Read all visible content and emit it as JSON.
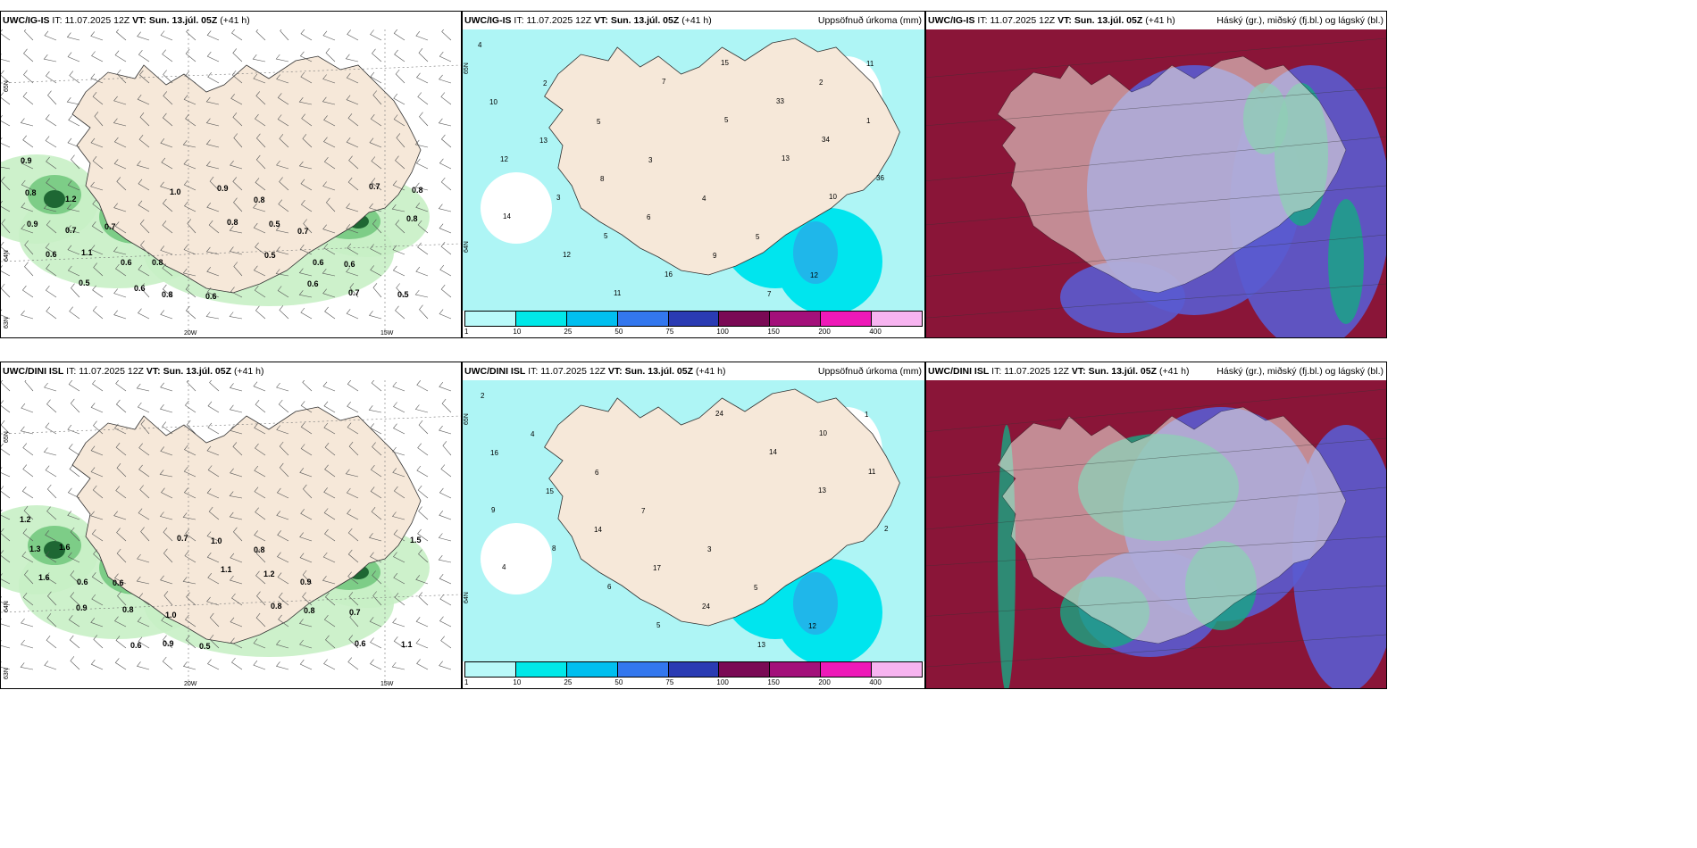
{
  "panels": [
    {
      "id": "top-left",
      "model": "UWC/IG-IS",
      "it_label": "IT:",
      "it_value": "11.07.2025 12Z",
      "vt_label": "VT:",
      "vt_value": "Sun. 13.júl. 05Z",
      "lead": "(+41 h)",
      "right_title": "",
      "lat_labels": [
        "65N",
        "64N",
        "63N"
      ],
      "lon_labels": [
        "20W",
        "15W"
      ],
      "values": [
        "0.9",
        "1.2",
        "0.7",
        "0.8",
        "0.6",
        "0.8",
        "0.7",
        "0.6",
        "0.5",
        "0.8",
        "0.7",
        "0.6",
        "0.8",
        "0.9",
        "0.5",
        "0.6",
        "0.7",
        "0.8",
        "0.9",
        "1.1",
        "0.6",
        "1.0",
        "0.8",
        "0.5",
        "0.6",
        "0.7",
        "0.8",
        "0.6",
        "0.5"
      ]
    },
    {
      "id": "top-middle",
      "model": "UWC/IG-IS",
      "it_label": "IT:",
      "it_value": "11.07.2025 12Z",
      "vt_label": "VT:",
      "vt_value": "Sun. 13.júl. 05Z",
      "lead": "(+41 h)",
      "right_title": "Uppsöfnuð úrkoma (mm)",
      "lat_labels": [
        "65N",
        "64N"
      ],
      "lon_labels": [],
      "values": [
        "4",
        "2",
        "5",
        "3",
        "4",
        "5",
        "12",
        "11",
        "10",
        "13",
        "8",
        "6",
        "9",
        "7",
        "2",
        "1",
        "12",
        "3",
        "5",
        "16",
        "15",
        "33",
        "34",
        "36",
        "14",
        "12",
        "11",
        "7",
        "5",
        "13",
        "10"
      ]
    },
    {
      "id": "top-right",
      "model": "UWC/IG-IS",
      "it_label": "IT:",
      "it_value": "11.07.2025 12Z",
      "vt_label": "VT:",
      "vt_value": "Sun. 13.júl. 05Z",
      "lead": "(+41 h)",
      "right_title": "Háský (gr.), miðský (fj.bl.) og lágský (bl.)",
      "lat_labels": [],
      "lon_labels": [],
      "values": []
    },
    {
      "id": "bottom-left",
      "model": "UWC/DINI ISL",
      "it_label": "IT:",
      "it_value": "11.07.2025 12Z",
      "vt_label": "VT:",
      "vt_value": "Sun. 13.júl. 05Z",
      "lead": "(+41 h)",
      "right_title": "",
      "lat_labels": [
        "65N",
        "64N",
        "63N"
      ],
      "lon_labels": [
        "20W",
        "15W"
      ],
      "values": [
        "1.2",
        "1.6",
        "0.6",
        "1.0",
        "0.5",
        "0.8",
        "0.9",
        "0.7",
        "1.1",
        "1.3",
        "0.6",
        "0.8",
        "0.9",
        "1.0",
        "1.2",
        "0.8",
        "0.6",
        "1.5",
        "1.6",
        "0.9",
        "0.6",
        "0.7",
        "1.1",
        "0.8"
      ]
    },
    {
      "id": "bottom-middle",
      "model": "UWC/DINI ISL",
      "it_label": "IT:",
      "it_value": "11.07.2025 12Z",
      "vt_label": "VT:",
      "vt_value": "Sun. 13.júl. 05Z",
      "lead": "(+41 h)",
      "right_title": "Uppsöfnuð úrkoma (mm)",
      "lat_labels": [
        "65N",
        "64N"
      ],
      "lon_labels": [],
      "values": [
        "2",
        "4",
        "6",
        "7",
        "3",
        "5",
        "12",
        "1",
        "16",
        "15",
        "14",
        "17",
        "24",
        "13",
        "10",
        "11",
        "9",
        "8",
        "6",
        "5",
        "24",
        "14",
        "13",
        "2",
        "4"
      ]
    },
    {
      "id": "bottom-right",
      "model": "UWC/DINI ISL",
      "it_label": "IT:",
      "it_value": "11.07.2025 12Z",
      "vt_label": "VT:",
      "vt_value": "Sun. 13.júl. 05Z",
      "lead": "(+41 h)",
      "right_title": "Háský (gr.), miðský (fj.bl.) og lágský (bl.)",
      "lat_labels": [],
      "lon_labels": [],
      "values": []
    }
  ],
  "colorbar": {
    "labels": [
      "1",
      "10",
      "25",
      "50",
      "75",
      "100",
      "150",
      "200",
      "400"
    ],
    "colors": [
      "#b9f9f9",
      "#00e8e8",
      "#00bfef",
      "#3377ee",
      "#2a3bb3",
      "#7a0a55",
      "#a3107a",
      "#ee19b8",
      "#f7b4f0"
    ]
  },
  "colors": {
    "land": "#f6e8d9",
    "precip_light": "#aef5f5",
    "precip_mid": "#00e5ee",
    "green_light": "#c8efc5",
    "green_mid": "#74c97f",
    "green_dark": "#145c2a",
    "cloud_high": "#8a1538",
    "cloud_mid": "#5a5bd0",
    "cloud_low": "#16a883"
  }
}
